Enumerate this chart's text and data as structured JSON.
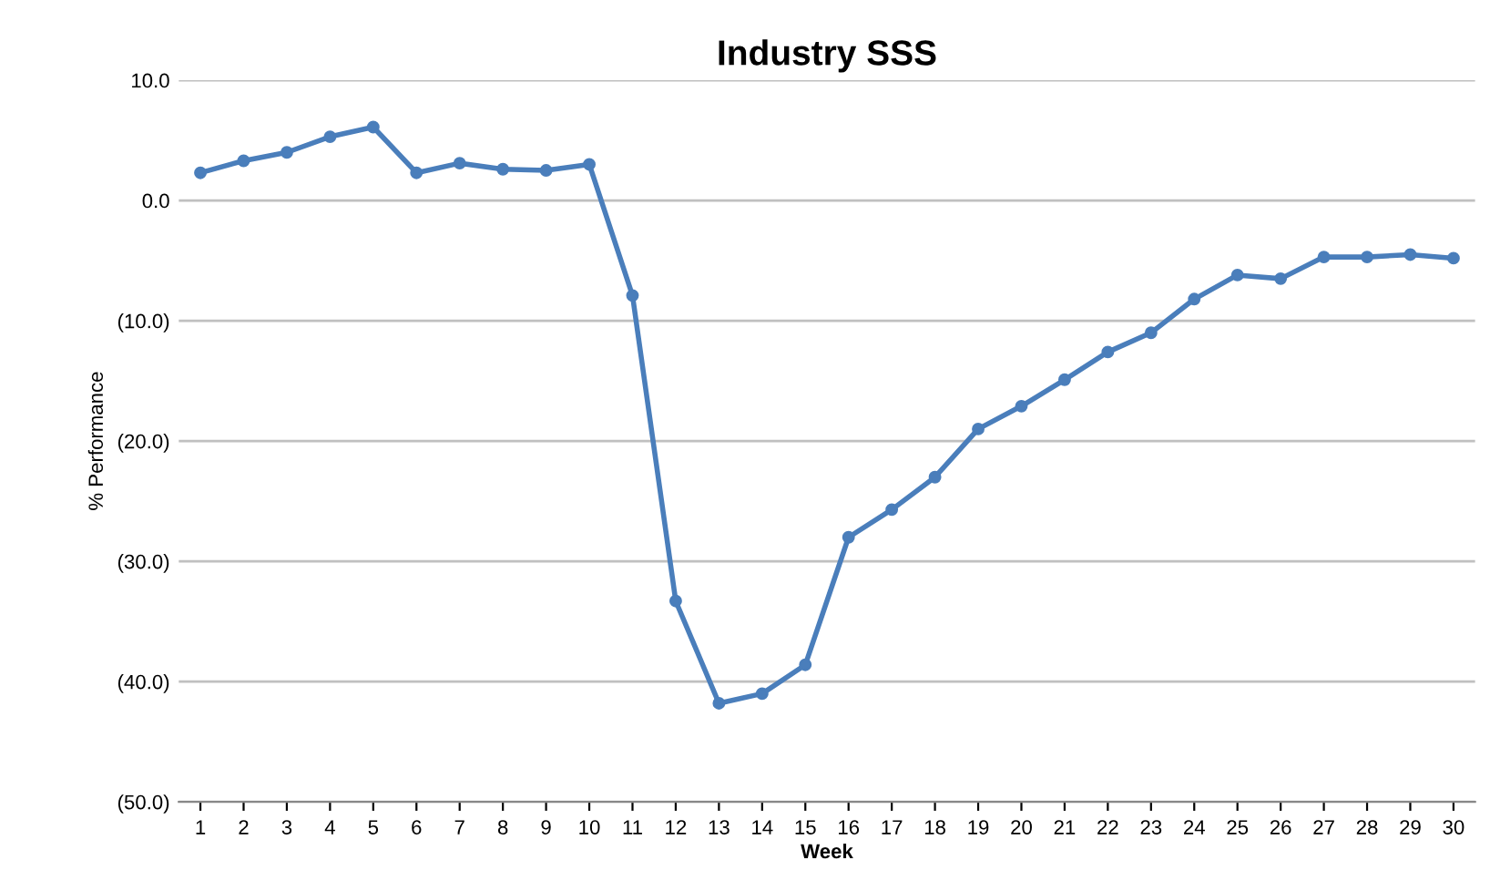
{
  "chart_data": {
    "type": "line",
    "title": "Industry SSS",
    "xlabel": "Week",
    "ylabel": "% Performance",
    "categories": [
      "1",
      "2",
      "3",
      "4",
      "5",
      "6",
      "7",
      "8",
      "9",
      "10",
      "11",
      "12",
      "13",
      "14",
      "15",
      "16",
      "17",
      "18",
      "19",
      "20",
      "21",
      "22",
      "23",
      "24",
      "25",
      "26",
      "27",
      "28",
      "29",
      "30"
    ],
    "series": [
      {
        "color": "#4a7ebb",
        "values": [
          2.3,
          3.3,
          4.0,
          5.3,
          6.1,
          2.3,
          3.1,
          2.6,
          2.5,
          3.0,
          -7.9,
          -33.3,
          -41.8,
          -41.0,
          -38.6,
          -28.0,
          -25.7,
          -23.0,
          -19.0,
          -17.1,
          -14.9,
          -12.6,
          -11.0,
          -8.2,
          -6.2,
          -6.5,
          -4.7,
          -4.7,
          -4.5,
          -4.8
        ]
      }
    ],
    "ylim": [
      -50,
      10
    ],
    "yticks": [
      {
        "value": -50,
        "label": "(50.0)"
      },
      {
        "value": -40,
        "label": "(40.0)"
      },
      {
        "value": -30,
        "label": "(30.0)"
      },
      {
        "value": -20,
        "label": "(20.0)"
      },
      {
        "value": -10,
        "label": "(10.0)"
      },
      {
        "value": 0,
        "label": "0.0"
      },
      {
        "value": 10,
        "label": "10.0"
      }
    ],
    "grid": "y",
    "marker": "circle",
    "line_style": "solid"
  }
}
